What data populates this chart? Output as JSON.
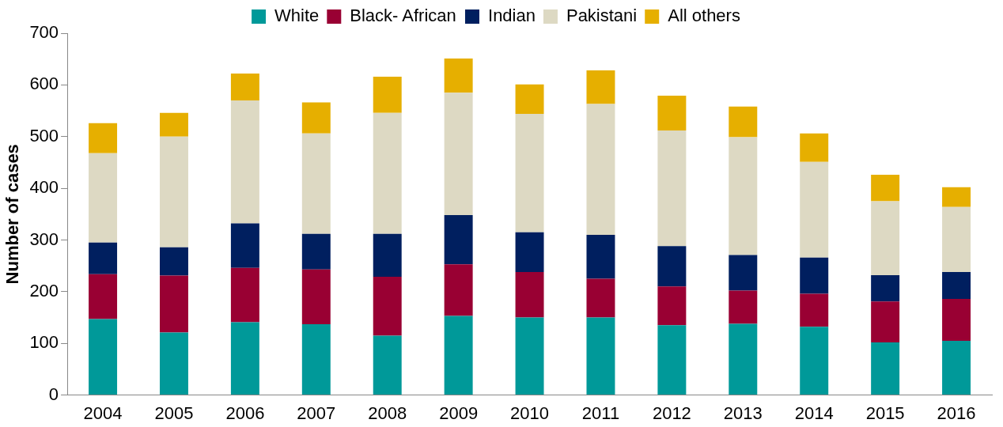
{
  "chart_data": {
    "type": "bar",
    "stacked": true,
    "ylabel": "Number of cases",
    "categories": [
      "2004",
      "2005",
      "2006",
      "2007",
      "2008",
      "2009",
      "2010",
      "2011",
      "2012",
      "2013",
      "2014",
      "2015",
      "2016"
    ],
    "series": [
      {
        "name": "White",
        "color": "#009999",
        "values": [
          147,
          121,
          141,
          137,
          115,
          153,
          150,
          150,
          135,
          138,
          132,
          102,
          105
        ]
      },
      {
        "name": "Black- African",
        "color": "#990033",
        "values": [
          87,
          110,
          105,
          106,
          114,
          100,
          88,
          75,
          75,
          64,
          64,
          79,
          81
        ]
      },
      {
        "name": "Indian",
        "color": "#001f5f",
        "values": [
          61,
          55,
          86,
          69,
          83,
          95,
          77,
          85,
          78,
          69,
          70,
          51,
          52
        ]
      },
      {
        "name": "Pakistani",
        "color": "#ddd9c3",
        "values": [
          173,
          214,
          238,
          194,
          234,
          237,
          229,
          253,
          224,
          228,
          185,
          143,
          126
        ]
      },
      {
        "name": "All others",
        "color": "#e6af00",
        "values": [
          58,
          46,
          52,
          60,
          70,
          66,
          57,
          65,
          67,
          59,
          55,
          51,
          38
        ]
      }
    ],
    "ylim": [
      0,
      700
    ],
    "yticks": [
      0,
      100,
      200,
      300,
      400,
      500,
      600,
      700
    ],
    "grid": false,
    "legend": "top"
  }
}
